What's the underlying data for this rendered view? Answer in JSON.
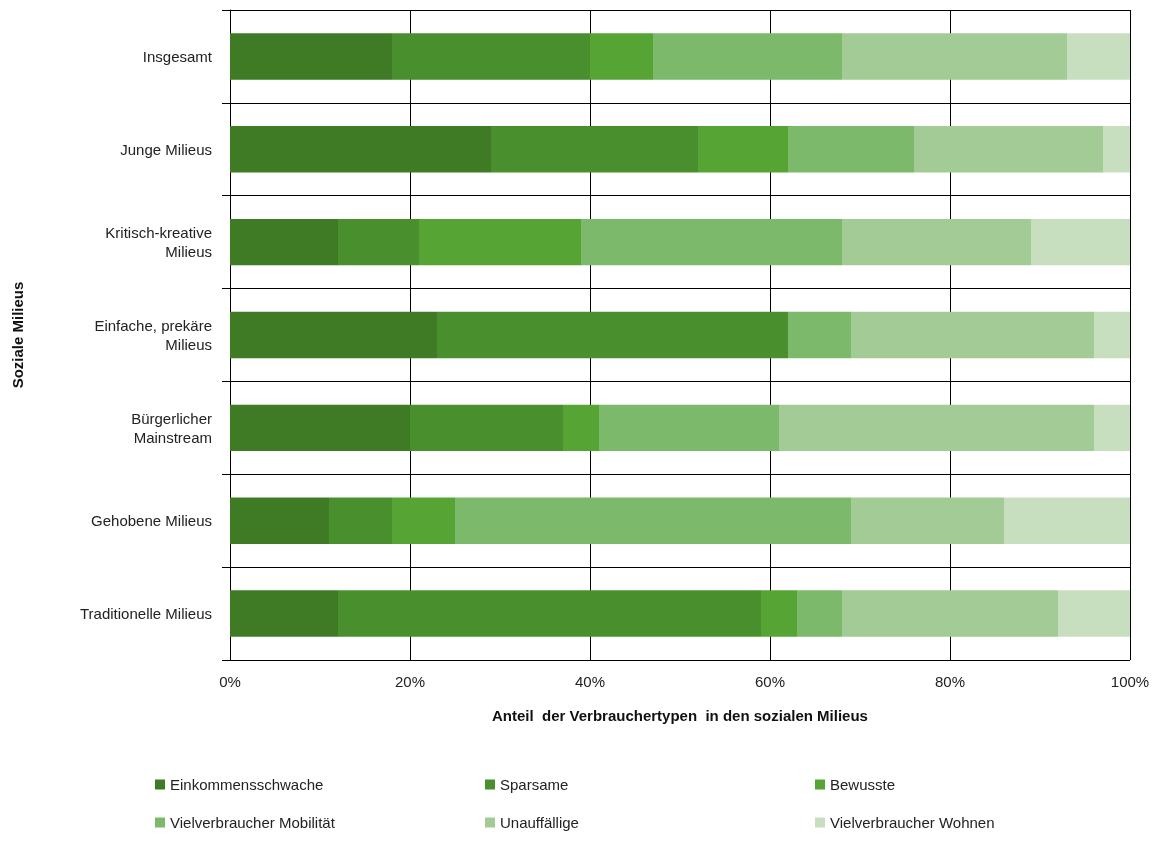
{
  "chart_data": {
    "type": "bar",
    "orientation": "horizontal",
    "stacked": true,
    "xlabel": "Anteil  der Verbrauchertypen  in den sozialen Milieus",
    "ylabel": "Soziale Milieus",
    "categories": [
      "Insgesamt",
      "Junge Milieus",
      "Kritisch-kreative\nMilieus",
      "Einfache, prekäre\nMilieus",
      "Bürgerlicher\nMainstream",
      "Gehobene Milieus",
      "Traditionelle Milieus"
    ],
    "series": [
      {
        "name": "Einkommensschwache",
        "color": "#3f7a24",
        "values": [
          18,
          29,
          12,
          23,
          20,
          11,
          12
        ]
      },
      {
        "name": "Sparsame",
        "color": "#4a8f2e",
        "values": [
          22,
          23,
          9,
          39,
          17,
          7,
          47
        ]
      },
      {
        "name": "Bewusste",
        "color": "#56a534",
        "values": [
          7,
          10,
          18,
          0,
          4,
          7,
          4
        ]
      },
      {
        "name": "Vielverbraucher Mobilität",
        "color": "#7db96a",
        "values": [
          21,
          14,
          29,
          7,
          20,
          44,
          5
        ]
      },
      {
        "name": "Unauffällige",
        "color": "#a2cb95",
        "values": [
          25,
          21,
          21,
          27,
          35,
          17,
          24
        ]
      },
      {
        "name": "Vielverbraucher Wohnen",
        "color": "#c7dfbf",
        "values": [
          7,
          3,
          11,
          4,
          4,
          14,
          8
        ]
      }
    ],
    "xlim": [
      0,
      100
    ],
    "xticks": [
      {
        "value": 0,
        "label": "0%"
      },
      {
        "value": 20,
        "label": "20%"
      },
      {
        "value": 40,
        "label": "40%"
      },
      {
        "value": 60,
        "label": "60%"
      },
      {
        "value": 80,
        "label": "80%"
      },
      {
        "value": 100,
        "label": "100%"
      }
    ],
    "grid": true,
    "legend": "bottom"
  }
}
